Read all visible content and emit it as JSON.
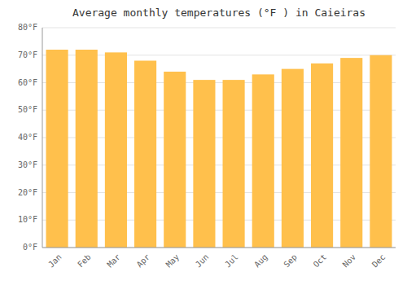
{
  "chart_data": {
    "type": "bar",
    "title": "Average monthly temperatures (°F ) in Caieiras",
    "categories": [
      "Jan",
      "Feb",
      "Mar",
      "Apr",
      "May",
      "Jun",
      "Jul",
      "Aug",
      "Sep",
      "Oct",
      "Nov",
      "Dec"
    ],
    "values": [
      72,
      72,
      71,
      68,
      64,
      61,
      61,
      63,
      65,
      67,
      69,
      70
    ],
    "color": "#FFC04C",
    "ylim": [
      0,
      80
    ],
    "yticks": [
      {
        "value": 0,
        "label": "0°F"
      },
      {
        "value": 10,
        "label": "10°F"
      },
      {
        "value": 20,
        "label": "20°F"
      },
      {
        "value": 30,
        "label": "30°F"
      },
      {
        "value": 40,
        "label": "40°F"
      },
      {
        "value": 50,
        "label": "50°F"
      },
      {
        "value": 60,
        "label": "60°F"
      },
      {
        "value": 70,
        "label": "70°F"
      },
      {
        "value": 80,
        "label": "80°F"
      }
    ],
    "grid": true
  }
}
